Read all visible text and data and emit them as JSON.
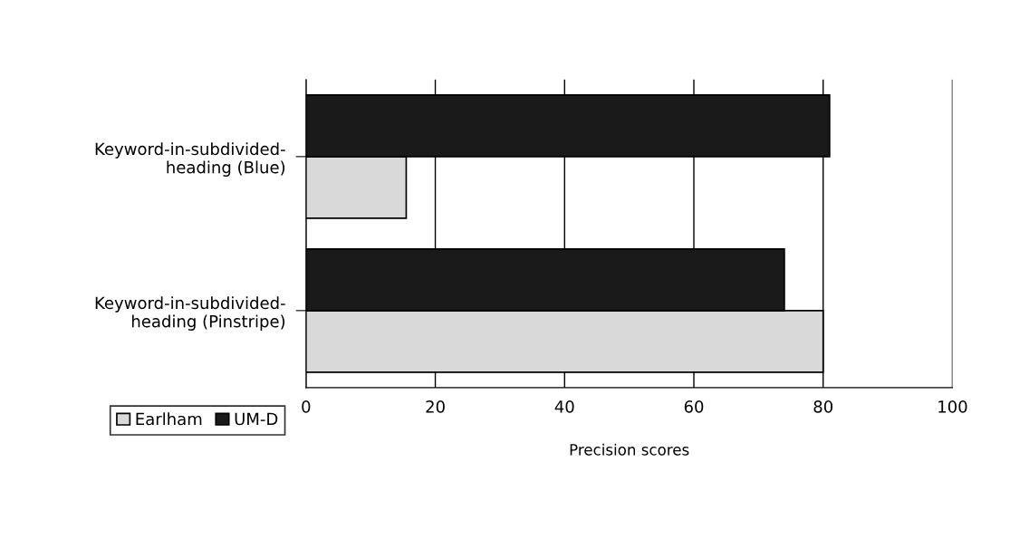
{
  "chart_data": {
    "type": "bar",
    "orientation": "horizontal",
    "categories": [
      "Keyword-in-subdivided-\nheading (Blue)",
      "Keyword-in-subdivided-\nheading (Pinstripe)"
    ],
    "series": [
      {
        "name": "Earlham",
        "color": "#d9d9d9",
        "values": [
          15.5,
          80
        ]
      },
      {
        "name": "UM-D",
        "color": "#1a1a1a",
        "values": [
          81,
          74
        ]
      }
    ],
    "xlim": [
      0,
      100
    ],
    "xticks": [
      0,
      20,
      40,
      60,
      80,
      100
    ],
    "xlabel": "Precision scores",
    "grid": "x",
    "legend": "bottom left"
  }
}
